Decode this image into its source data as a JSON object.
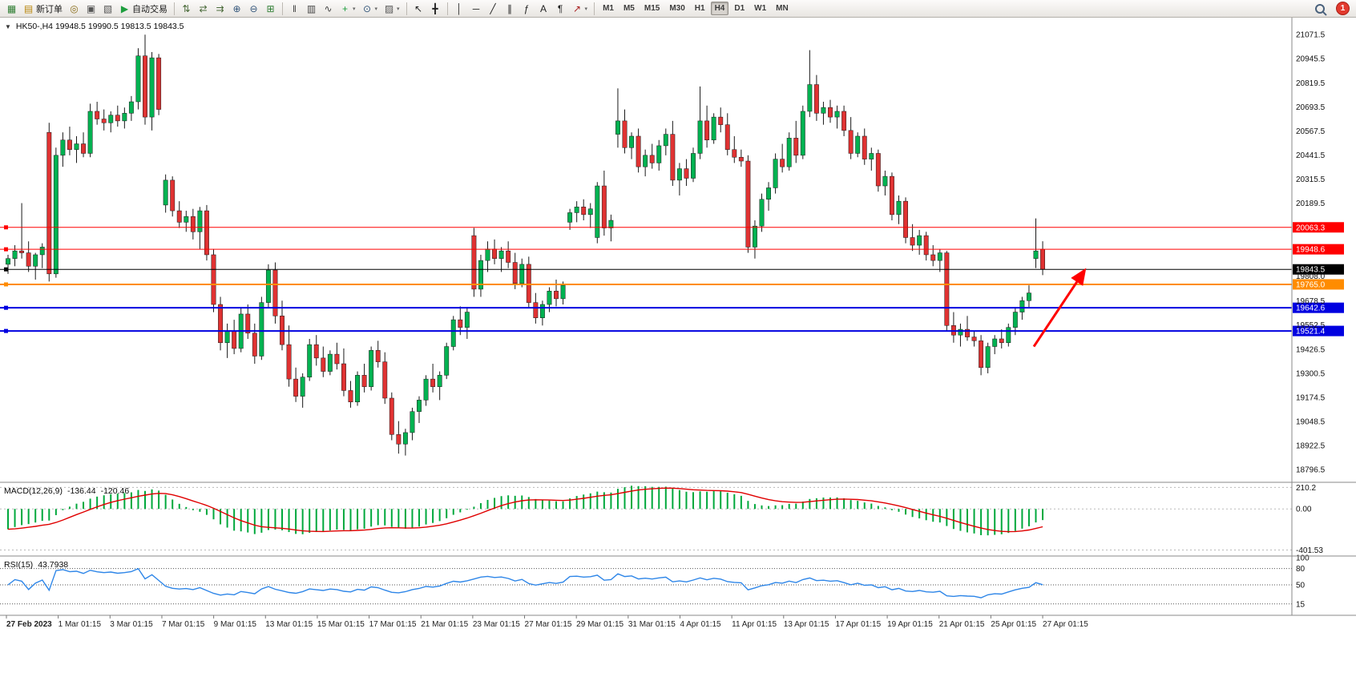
{
  "icons": {
    "collapse": "▼",
    "caret_down": "▾"
  },
  "toolbar": {
    "items": [
      {
        "name": "new-chart",
        "icon": "▦",
        "tint": "#2e7d32"
      },
      {
        "name": "new-order",
        "icon": "▤",
        "label": "新订单",
        "tint": "#b8860b"
      },
      {
        "name": "navigator",
        "icon": "◎",
        "tint": "#8a6d1a"
      },
      {
        "name": "market-watch",
        "icon": "▣",
        "tint": "#555555"
      },
      {
        "name": "strategy-tester",
        "icon": "▧",
        "tint": "#555555"
      },
      {
        "name": "auto-trading",
        "icon": "▶",
        "label": "自动交易",
        "tint": "#1e9e3e"
      },
      {
        "sep": true
      },
      {
        "name": "indicator-window",
        "icon": "⇅",
        "tint": "#4a6a3a"
      },
      {
        "name": "chart-shift",
        "icon": "⇄",
        "tint": "#4a6a3a"
      },
      {
        "name": "auto-scroll",
        "icon": "⇉",
        "tint": "#4a6a3a"
      },
      {
        "name": "zoom-in",
        "icon": "⊕",
        "tint": "#33557a"
      },
      {
        "name": "zoom-out",
        "icon": "⊖",
        "tint": "#33557a"
      },
      {
        "name": "tile-windows",
        "icon": "⊞",
        "tint": "#2e7d32"
      },
      {
        "sep": true
      },
      {
        "name": "bar-chart",
        "icon": "‖",
        "tint": "#444444"
      },
      {
        "name": "candlestick-chart",
        "icon": "▥",
        "tint": "#444444"
      },
      {
        "name": "line-chart",
        "icon": "∿",
        "tint": "#444444"
      },
      {
        "name": "indicators-add",
        "icon": "+",
        "tint": "#1e9e3e",
        "caret": true
      },
      {
        "name": "periods",
        "icon": "⊙",
        "tint": "#33557a",
        "caret": true
      },
      {
        "name": "templates",
        "icon": "▨",
        "tint": "#555555",
        "caret": true
      },
      {
        "sep": true
      },
      {
        "name": "cursor",
        "icon": "↖",
        "tint": "#222222"
      },
      {
        "name": "crosshair",
        "icon": "╋",
        "tint": "#222222"
      },
      {
        "sep": true
      },
      {
        "name": "vertical-line",
        "icon": "│",
        "tint": "#222222"
      },
      {
        "name": "horizontal-line",
        "icon": "─",
        "tint": "#222222"
      },
      {
        "name": "trendline",
        "icon": "╱",
        "tint": "#222222"
      },
      {
        "name": "equidistant-channel",
        "icon": "∥",
        "tint": "#222222"
      },
      {
        "name": "fibonacci",
        "icon": "ƒ",
        "tint": "#222222"
      },
      {
        "name": "text",
        "icon": "A",
        "tint": "#222222"
      },
      {
        "name": "text-label",
        "icon": "¶",
        "tint": "#222222"
      },
      {
        "name": "arrows",
        "icon": "↗",
        "tint": "#aa2222",
        "caret": true
      },
      {
        "sep": true
      }
    ],
    "timeframes": [
      "M1",
      "M5",
      "M15",
      "M30",
      "H1",
      "H4",
      "D1",
      "W1",
      "MN"
    ],
    "active_timeframe": "H4",
    "notification_badge": "1"
  },
  "chart_data": {
    "type": "candlestick",
    "symbol": "HK50-",
    "timeframe": "H4",
    "title": "HK50-,H4  19948.5 19990.5 19813.5 19843.5",
    "price_range": [
      18730,
      21160
    ],
    "price_axis_ticks": [
      21071.5,
      20945.5,
      20819.5,
      20693.5,
      20567.5,
      20441.5,
      20315.5,
      20189.5,
      19808.0,
      19678.5,
      19552.5,
      19426.5,
      19300.5,
      19174.5,
      19048.5,
      18922.5,
      18796.5
    ],
    "hlines": [
      {
        "price": 20063.3,
        "color": "#ff0000",
        "width": 1,
        "label": "20063.3"
      },
      {
        "price": 19948.6,
        "color": "#ff0000",
        "width": 1,
        "label": "19948.6"
      },
      {
        "price": 19843.5,
        "color": "#000000",
        "width": 1,
        "label": "19843.5"
      },
      {
        "price": 19765.0,
        "color": "#ff8c00",
        "width": 2,
        "label": "19765.0"
      },
      {
        "price": 19642.6,
        "color": "#0000e0",
        "width": 2,
        "label": "19642.6"
      },
      {
        "price": 19521.4,
        "color": "#0000e0",
        "width": 2,
        "label": "19521.4"
      }
    ],
    "x_labels": [
      "27 Feb 2023",
      "1 Mar 01:15",
      "3 Mar 01:15",
      "7 Mar 01:15",
      "9 Mar 01:15",
      "13 Mar 01:15",
      "15 Mar 01:15",
      "17 Mar 01:15",
      "21 Mar 01:15",
      "23 Mar 01:15",
      "27 Mar 01:15",
      "29 Mar 01:15",
      "31 Mar 01:15",
      "4 Apr 01:15",
      "11 Apr 01:15",
      "13 Apr 01:15",
      "17 Apr 01:15",
      "19 Apr 01:15",
      "21 Apr 01:15",
      "25 Apr 01:15",
      "27 Apr 01:15"
    ],
    "colors": {
      "bull": "#00b251",
      "bear": "#e03232",
      "wick": "#1a1a1a",
      "macd_hist": "#00a83c",
      "macd_signal": "#e00000",
      "rsi_line": "#2e86e8"
    },
    "arrow": {
      "color": "#ff0000",
      "from_price": 19440,
      "to_price": 19830
    },
    "indicators": {
      "macd": {
        "label": "MACD(12,26,9)",
        "params": [
          12,
          26,
          9
        ],
        "value_main": "-136.44",
        "value_signal": "-120.46",
        "range": [
          -460,
          260
        ],
        "axis": [
          {
            "label": "210.2",
            "value": 210.2
          },
          {
            "label": "0.00",
            "value": 0
          },
          {
            "label": "-401.53",
            "value": -401.53
          }
        ]
      },
      "rsi": {
        "label": "RSI(15)",
        "params": [
          15
        ],
        "value": "43.7938",
        "range": [
          0,
          100
        ],
        "levels": [
          80,
          50,
          15
        ],
        "axis": [
          {
            "label": "100",
            "value": 100
          },
          {
            "label": "80",
            "value": 80
          },
          {
            "label": "50",
            "value": 50
          },
          {
            "label": "15",
            "value": 15
          }
        ]
      }
    },
    "ohlc": [
      [
        19870,
        19920,
        19820,
        19900
      ],
      [
        19900,
        19970,
        19860,
        19940
      ],
      [
        19940,
        20190,
        19900,
        19930
      ],
      [
        19930,
        19990,
        19830,
        19860
      ],
      [
        19860,
        19930,
        19790,
        19920
      ],
      [
        19920,
        19980,
        19850,
        19960
      ],
      [
        20560,
        20610,
        19780,
        19820
      ],
      [
        19820,
        20480,
        19800,
        20440
      ],
      [
        20440,
        20560,
        20380,
        20520
      ],
      [
        20520,
        20590,
        20440,
        20470
      ],
      [
        20470,
        20540,
        20400,
        20500
      ],
      [
        20500,
        20560,
        20430,
        20450
      ],
      [
        20450,
        20710,
        20430,
        20670
      ],
      [
        20670,
        20720,
        20600,
        20630
      ],
      [
        20630,
        20680,
        20570,
        20610
      ],
      [
        20610,
        20670,
        20560,
        20650
      ],
      [
        20650,
        20700,
        20590,
        20620
      ],
      [
        20620,
        20690,
        20580,
        20660
      ],
      [
        20660,
        20750,
        20620,
        20720
      ],
      [
        20720,
        21000,
        20680,
        20960
      ],
      [
        20960,
        21071,
        20600,
        20640
      ],
      [
        20640,
        20980,
        20570,
        20950
      ],
      [
        20950,
        20970,
        20650,
        20680
      ],
      [
        20180,
        20340,
        20140,
        20310
      ],
      [
        20310,
        20330,
        20120,
        20150
      ],
      [
        20150,
        20200,
        20060,
        20090
      ],
      [
        20090,
        20150,
        20040,
        20120
      ],
      [
        20120,
        20160,
        20000,
        20040
      ],
      [
        20040,
        20170,
        19950,
        20150
      ],
      [
        20150,
        20180,
        19890,
        19920
      ],
      [
        19920,
        19950,
        19620,
        19660
      ],
      [
        19660,
        19700,
        19420,
        19460
      ],
      [
        19460,
        19560,
        19380,
        19520
      ],
      [
        19520,
        19580,
        19400,
        19430
      ],
      [
        19430,
        19640,
        19410,
        19610
      ],
      [
        19610,
        19660,
        19480,
        19510
      ],
      [
        19510,
        19560,
        19350,
        19390
      ],
      [
        19390,
        19700,
        19370,
        19670
      ],
      [
        19670,
        19870,
        19640,
        19840
      ],
      [
        19840,
        19880,
        19560,
        19600
      ],
      [
        19600,
        19680,
        19420,
        19450
      ],
      [
        19450,
        19550,
        19230,
        19270
      ],
      [
        19270,
        19330,
        19150,
        19180
      ],
      [
        19180,
        19300,
        19120,
        19280
      ],
      [
        19280,
        19480,
        19260,
        19450
      ],
      [
        19450,
        19500,
        19340,
        19380
      ],
      [
        19380,
        19440,
        19280,
        19310
      ],
      [
        19310,
        19420,
        19290,
        19400
      ],
      [
        19400,
        19460,
        19320,
        19350
      ],
      [
        19350,
        19430,
        19180,
        19210
      ],
      [
        19210,
        19260,
        19120,
        19150
      ],
      [
        19150,
        19310,
        19130,
        19290
      ],
      [
        19290,
        19350,
        19200,
        19230
      ],
      [
        19230,
        19440,
        19210,
        19420
      ],
      [
        19420,
        19470,
        19330,
        19360
      ],
      [
        19360,
        19410,
        19140,
        19170
      ],
      [
        19170,
        19200,
        18950,
        18980
      ],
      [
        18980,
        19050,
        18880,
        18930
      ],
      [
        18930,
        19010,
        18870,
        18990
      ],
      [
        18990,
        19120,
        18950,
        19100
      ],
      [
        19100,
        19180,
        19040,
        19160
      ],
      [
        19160,
        19290,
        19130,
        19270
      ],
      [
        19270,
        19350,
        19200,
        19230
      ],
      [
        19230,
        19310,
        19160,
        19290
      ],
      [
        19290,
        19460,
        19270,
        19440
      ],
      [
        19440,
        19600,
        19420,
        19580
      ],
      [
        19580,
        19650,
        19500,
        19540
      ],
      [
        19540,
        19640,
        19480,
        19620
      ],
      [
        20020,
        20060,
        19700,
        19740
      ],
      [
        19740,
        19920,
        19700,
        19890
      ],
      [
        19890,
        19990,
        19830,
        19950
      ],
      [
        19950,
        20000,
        19870,
        19900
      ],
      [
        19900,
        19960,
        19830,
        19940
      ],
      [
        19940,
        19990,
        19850,
        19880
      ],
      [
        19880,
        19930,
        19740,
        19770
      ],
      [
        19770,
        19900,
        19750,
        19870
      ],
      [
        19870,
        19910,
        19640,
        19670
      ],
      [
        19670,
        19720,
        19560,
        19590
      ],
      [
        19590,
        19680,
        19550,
        19660
      ],
      [
        19660,
        19750,
        19620,
        19730
      ],
      [
        19730,
        19790,
        19650,
        19690
      ],
      [
        19690,
        19780,
        19660,
        19760
      ],
      [
        20090,
        20160,
        20050,
        20140
      ],
      [
        20140,
        20200,
        20090,
        20170
      ],
      [
        20170,
        20210,
        20100,
        20130
      ],
      [
        20130,
        20190,
        20060,
        20160
      ],
      [
        20010,
        20300,
        19980,
        20280
      ],
      [
        20280,
        20360,
        20020,
        20060
      ],
      [
        20060,
        20130,
        19990,
        20100
      ],
      [
        20550,
        20790,
        20480,
        20620
      ],
      [
        20620,
        20680,
        20450,
        20480
      ],
      [
        20480,
        20560,
        20420,
        20540
      ],
      [
        20540,
        20580,
        20350,
        20380
      ],
      [
        20380,
        20470,
        20330,
        20440
      ],
      [
        20440,
        20500,
        20370,
        20400
      ],
      [
        20400,
        20520,
        20360,
        20490
      ],
      [
        20490,
        20580,
        20440,
        20550
      ],
      [
        20550,
        20620,
        20280,
        20310
      ],
      [
        20310,
        20400,
        20230,
        20370
      ],
      [
        20370,
        20420,
        20280,
        20320
      ],
      [
        20320,
        20480,
        20300,
        20450
      ],
      [
        20450,
        20800,
        20420,
        20620
      ],
      [
        20620,
        20700,
        20480,
        20520
      ],
      [
        20520,
        20660,
        20500,
        20640
      ],
      [
        20640,
        20690,
        20560,
        20600
      ],
      [
        20600,
        20660,
        20440,
        20470
      ],
      [
        20470,
        20540,
        20400,
        20430
      ],
      [
        20430,
        20470,
        20380,
        20410
      ],
      [
        20410,
        20440,
        19930,
        19960
      ],
      [
        19960,
        20100,
        19900,
        20070
      ],
      [
        20070,
        20240,
        20040,
        20210
      ],
      [
        20210,
        20300,
        20150,
        20270
      ],
      [
        20270,
        20450,
        20240,
        20420
      ],
      [
        20420,
        20500,
        20350,
        20380
      ],
      [
        20380,
        20560,
        20360,
        20530
      ],
      [
        20530,
        20620,
        20400,
        20440
      ],
      [
        20440,
        20700,
        20420,
        20670
      ],
      [
        20670,
        20990,
        20640,
        20810
      ],
      [
        20810,
        20860,
        20620,
        20660
      ],
      [
        20660,
        20720,
        20600,
        20690
      ],
      [
        20690,
        20730,
        20610,
        20640
      ],
      [
        20640,
        20700,
        20580,
        20670
      ],
      [
        20670,
        20700,
        20540,
        20570
      ],
      [
        20570,
        20640,
        20420,
        20450
      ],
      [
        20450,
        20560,
        20430,
        20540
      ],
      [
        20540,
        20580,
        20390,
        20420
      ],
      [
        20420,
        20480,
        20360,
        20450
      ],
      [
        20450,
        20470,
        20250,
        20280
      ],
      [
        20280,
        20360,
        20230,
        20330
      ],
      [
        20330,
        20350,
        20100,
        20130
      ],
      [
        20130,
        20230,
        20080,
        20200
      ],
      [
        20200,
        20220,
        19980,
        20010
      ],
      [
        20010,
        20080,
        19940,
        19970
      ],
      [
        19970,
        20050,
        19920,
        20020
      ],
      [
        20020,
        20040,
        19890,
        19920
      ],
      [
        19920,
        19970,
        19860,
        19890
      ],
      [
        19890,
        19950,
        19830,
        19930
      ],
      [
        19930,
        19940,
        19520,
        19550
      ],
      [
        19550,
        19620,
        19460,
        19500
      ],
      [
        19500,
        19560,
        19440,
        19530
      ],
      [
        19530,
        19600,
        19470,
        19490
      ],
      [
        19490,
        19520,
        19440,
        19470
      ],
      [
        19470,
        19500,
        19290,
        19330
      ],
      [
        19330,
        19460,
        19300,
        19440
      ],
      [
        19440,
        19500,
        19400,
        19480
      ],
      [
        19480,
        19530,
        19430,
        19460
      ],
      [
        19460,
        19560,
        19440,
        19540
      ],
      [
        19540,
        19640,
        19500,
        19620
      ],
      [
        19620,
        19700,
        19580,
        19680
      ],
      [
        19680,
        19760,
        19640,
        19720
      ],
      [
        19900,
        20110,
        19850,
        19940
      ],
      [
        19948.5,
        19990.5,
        19813.5,
        19843.5
      ]
    ]
  }
}
